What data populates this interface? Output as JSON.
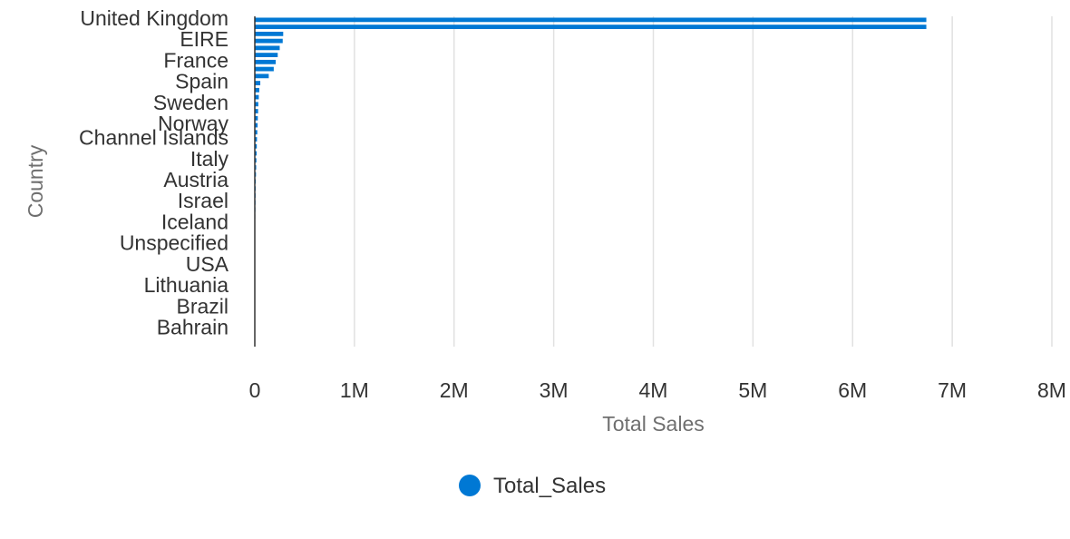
{
  "chart_data": {
    "type": "bar",
    "orientation": "horizontal",
    "xlabel": "Total Sales",
    "ylabel": "Country",
    "xlim": [
      0,
      8000000
    ],
    "x_ticks": [
      "0",
      "1M",
      "2M",
      "3M",
      "4M",
      "5M",
      "6M",
      "7M",
      "8M"
    ],
    "grid": "vertical",
    "legend_position": "bottom",
    "categories": [
      "United Kingdom",
      "",
      "",
      "EIRE",
      "",
      "",
      "France",
      "",
      "",
      "Spain",
      "",
      "",
      "Sweden",
      "",
      "",
      "Norway",
      "",
      "Channel Islands",
      "",
      "",
      "Italy",
      "",
      "",
      "Austria",
      "",
      "",
      "Israel",
      "",
      "",
      "Iceland",
      "",
      "",
      "Unspecified",
      "",
      "",
      "USA",
      "",
      "",
      "Lithuania",
      "",
      "",
      "Brazil",
      "",
      "",
      "Bahrain",
      "",
      ""
    ],
    "series": [
      {
        "name": "Total_Sales",
        "color": "#0078d4",
        "values": [
          6740000,
          6740000,
          285000,
          280000,
          250000,
          230000,
          210000,
          190000,
          140000,
          55000,
          45000,
          40000,
          35000,
          33000,
          30000,
          28000,
          25000,
          22000,
          20000,
          18000,
          16000,
          14000,
          12000,
          10000,
          9000,
          8000,
          7000,
          6000,
          5000,
          4500,
          4000,
          3500,
          3000,
          2600,
          2200,
          1900,
          1600,
          1400,
          1200,
          1000,
          800,
          600,
          500,
          400,
          300,
          200,
          150
        ]
      }
    ]
  }
}
